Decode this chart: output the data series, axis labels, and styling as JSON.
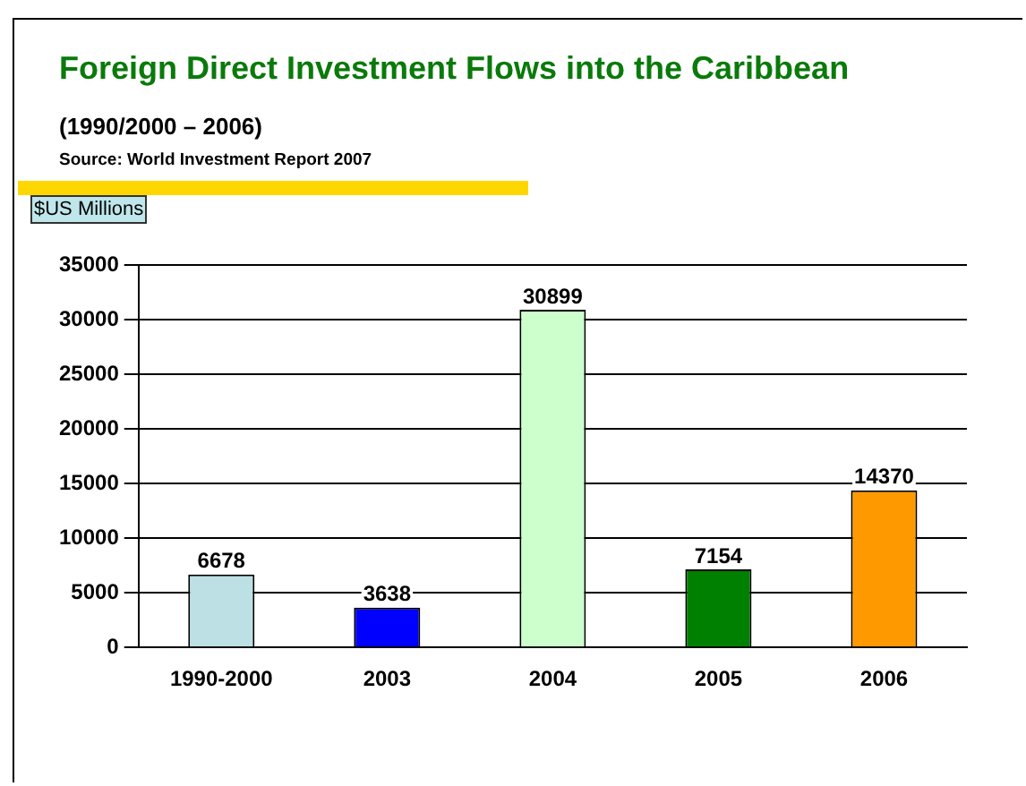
{
  "chart_data": {
    "type": "bar",
    "title": "Foreign Direct Investment Flows into the Caribbean",
    "subtitle": "(1990/2000 – 2006)",
    "annotations": [
      "Source: World Investment Report 2007"
    ],
    "ylabel": "$US Millions",
    "categories": [
      "1990-2000",
      "2003",
      "2004",
      "2005",
      "2006"
    ],
    "values": [
      6678,
      3638,
      30899,
      7154,
      14370
    ],
    "colors": [
      "#bce0e4",
      "#0000ff",
      "#ccffcc",
      "#008000",
      "#ff9900"
    ],
    "ylim": [
      0,
      35000
    ],
    "yticks": [
      0,
      5000,
      10000,
      15000,
      20000,
      25000,
      30000,
      35000
    ],
    "grid": "y",
    "data_labels": true
  }
}
